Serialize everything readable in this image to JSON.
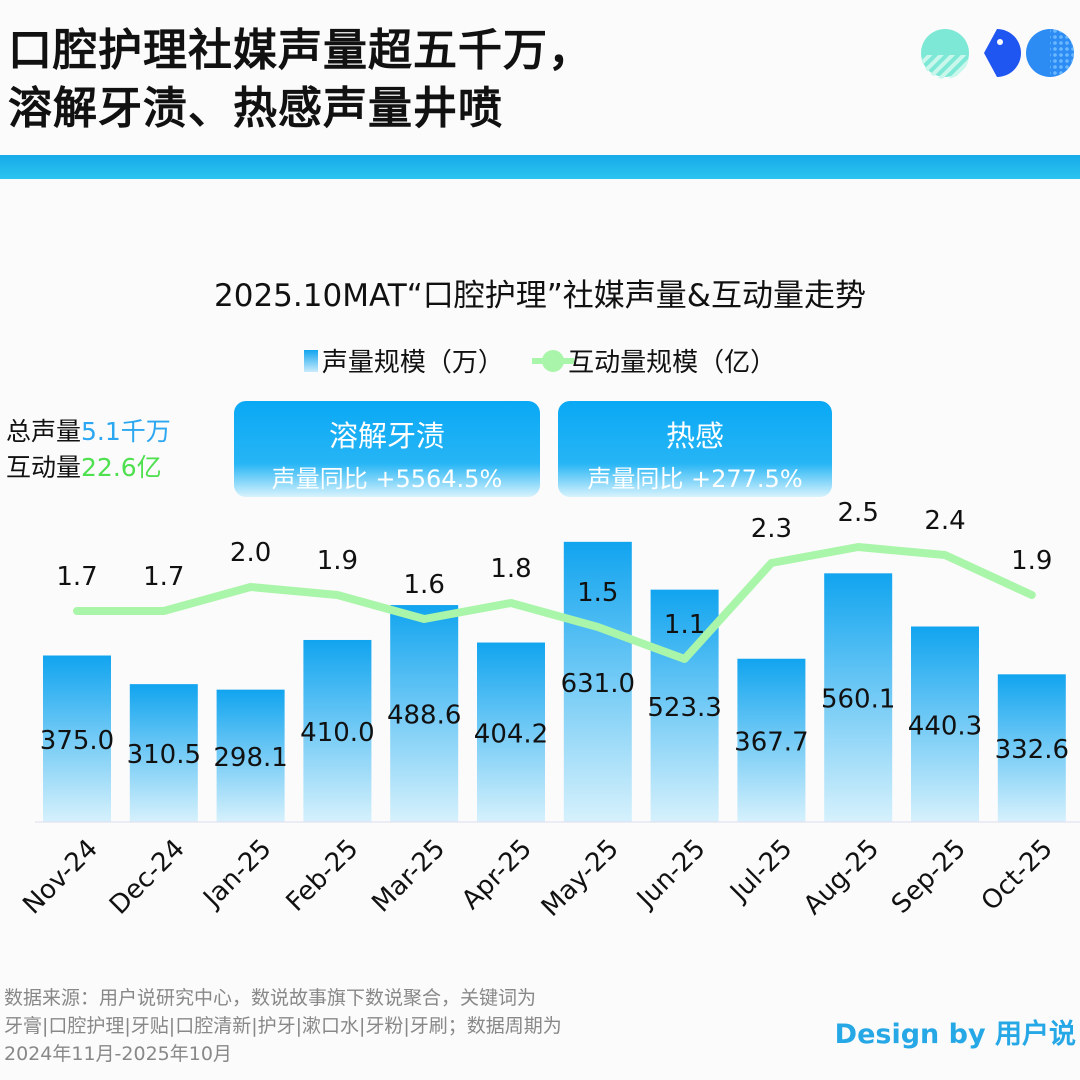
{
  "header": {
    "title_line1": "口腔护理社媒声量超五千万，",
    "title_line2": "溶解牙渍、热感声量井喷"
  },
  "colors": {
    "bar_top": "#11a4ef",
    "bar_bottom": "#d6f1fc",
    "line": "#a9f5a9",
    "accent_blue": "#2aa7f0",
    "accent_green": "#4ee04e",
    "band": "#17aaea"
  },
  "summary": {
    "volume_label": "总声量",
    "volume_value": "5.1千万",
    "interaction_label": "互动量",
    "interaction_value": "22.6亿"
  },
  "cards": [
    {
      "title": "溶解牙渍",
      "subtitle": "声量同比  +5564.5%"
    },
    {
      "title": "热感",
      "subtitle": "声量同比  +277.5%"
    }
  ],
  "footer": {
    "source_line1": "数据来源：用户说研究中心，数说故事旗下数说聚合，关键词为",
    "source_line2": "牙膏|口腔护理|牙贴|口腔清新|护牙|漱口水|牙粉|牙刷；数据周期为",
    "source_line3": "2024年11月-2025年10月",
    "design": "Design by 用户说"
  },
  "chart_data": {
    "type": "bar+line",
    "title": "2025.10MAT“口腔护理”社媒声量&互动量走势",
    "categories": [
      "Nov-24",
      "Dec-24",
      "Jan-25",
      "Feb-25",
      "Mar-25",
      "Apr-25",
      "May-25",
      "Jun-25",
      "Jul-25",
      "Aug-25",
      "Sep-25",
      "Oct-25"
    ],
    "series": [
      {
        "name": "声量规模（万）",
        "type": "bar",
        "values": [
          375.0,
          310.5,
          298.1,
          410.0,
          488.6,
          404.2,
          631.0,
          523.3,
          367.7,
          560.1,
          440.3,
          332.6
        ]
      },
      {
        "name": "互动量规模（亿）",
        "type": "line",
        "values": [
          1.7,
          1.7,
          2.0,
          1.9,
          1.6,
          1.8,
          1.5,
          1.1,
          2.3,
          2.5,
          2.4,
          1.9
        ]
      }
    ],
    "legend": "top-center",
    "grid": false
  }
}
